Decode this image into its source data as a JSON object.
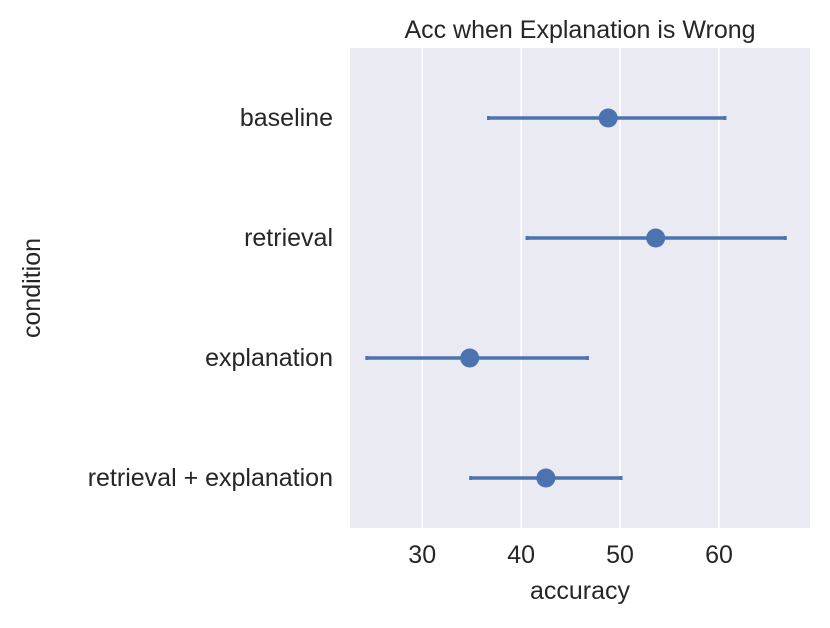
{
  "chart_data": {
    "type": "pointplot",
    "orientation": "horizontal",
    "title": "Acc when Explanation is Wrong",
    "xlabel": "accuracy",
    "ylabel": "condition",
    "categories": [
      "baseline",
      "retrieval",
      "explanation",
      "retrieval + explanation"
    ],
    "series": [
      {
        "color": "#4c72b0",
        "values": [
          48.8,
          53.6,
          34.8,
          42.5
        ],
        "ci_low": [
          36.7,
          40.6,
          24.4,
          34.9
        ],
        "ci_high": [
          60.6,
          66.7,
          46.7,
          50.1
        ]
      }
    ],
    "xlim": [
      22.7,
      69.2
    ],
    "xticks": [
      30,
      40,
      50,
      60
    ],
    "grid": true,
    "background": "#eaeaf2",
    "grid_color": "#ffffff"
  }
}
